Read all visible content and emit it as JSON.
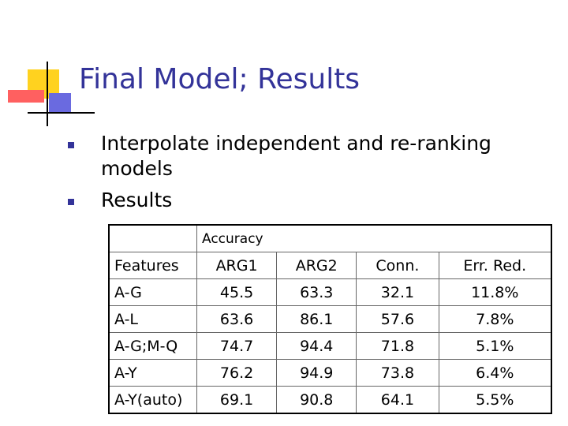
{
  "header": {
    "title": "Final Model; Results"
  },
  "bullets": [
    "Interpolate independent and re-ranking models",
    "Results"
  ],
  "table": {
    "group_header": "Accuracy",
    "columns": [
      "Features",
      "ARG1",
      "ARG2",
      "Conn.",
      "Err. Red."
    ],
    "rows": [
      [
        "A-G",
        "45.5",
        "63.3",
        "32.1",
        "11.8%"
      ],
      [
        "A-L",
        "63.6",
        "86.1",
        "57.6",
        "7.8%"
      ],
      [
        "A-G;M-Q",
        "74.7",
        "94.4",
        "71.8",
        "5.1%"
      ],
      [
        "A-Y",
        "76.2",
        "94.9",
        "73.8",
        "6.4%"
      ],
      [
        "A-Y(auto)",
        "69.1",
        "90.8",
        "64.1",
        "5.5%"
      ]
    ]
  }
}
